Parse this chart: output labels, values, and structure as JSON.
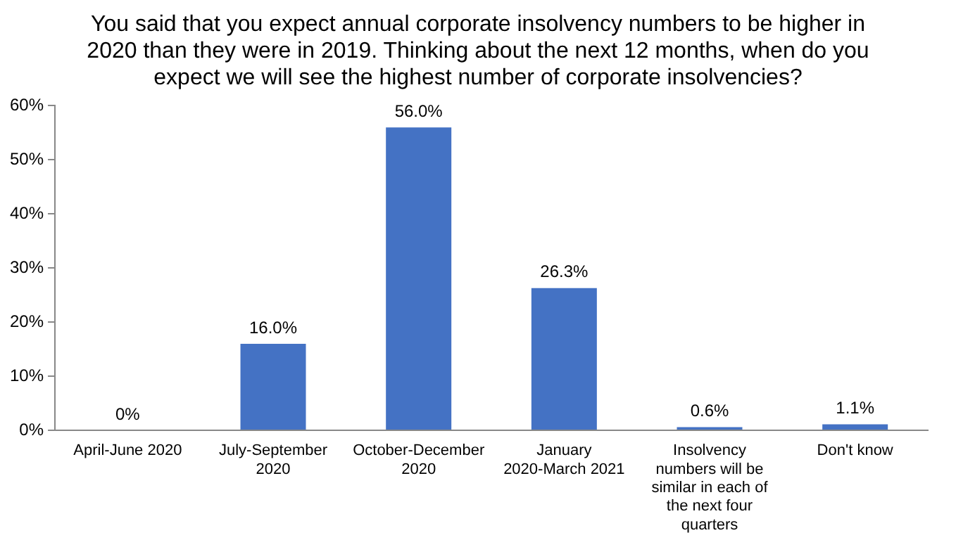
{
  "chart_data": {
    "type": "bar",
    "title": "You said that you expect annual corporate insolvency numbers to be higher in 2020 than they were in 2019. Thinking about the next 12 months, when do you expect we will see the highest number of corporate insolvencies?",
    "categories": [
      "April-June 2020",
      "July-September 2020",
      "October-December 2020",
      "January 2020-March 2021",
      "Insolvency numbers will be similar in each of the next four quarters",
      "Don't know"
    ],
    "values": [
      0,
      16.0,
      56.0,
      26.3,
      0.6,
      1.1
    ],
    "value_labels": [
      "0%",
      "16.0%",
      "56.0%",
      "26.3%",
      "0.6%",
      "1.1%"
    ],
    "color": "#4472c4",
    "ylim": [
      0,
      60
    ],
    "yticks": [
      {
        "value": 0,
        "label": "0%"
      },
      {
        "value": 10,
        "label": "10%"
      },
      {
        "value": 20,
        "label": "20%"
      },
      {
        "value": 30,
        "label": "30%"
      },
      {
        "value": 40,
        "label": "40%"
      },
      {
        "value": 50,
        "label": "50%"
      },
      {
        "value": 60,
        "label": "60%"
      }
    ],
    "grid": false
  }
}
